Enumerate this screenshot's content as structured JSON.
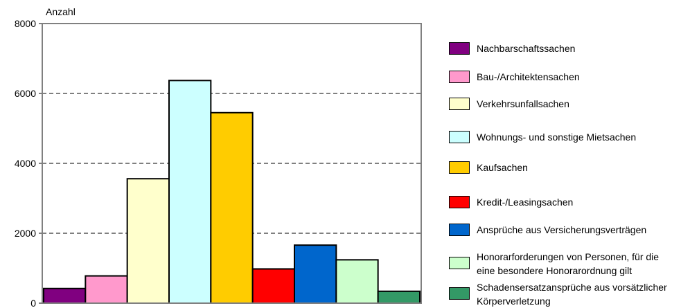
{
  "chart_data": {
    "type": "bar",
    "ylabel": "Anzahl",
    "ylim": [
      0,
      8000
    ],
    "yticks": [
      0,
      2000,
      4000,
      6000,
      8000
    ],
    "grid": "dashed horizontal",
    "legend_position": "right",
    "series": [
      {
        "name": "Nachbarschaftssachen",
        "value": 420,
        "color": "#800080"
      },
      {
        "name": "Bau-/Architektensachen",
        "value": 780,
        "color": "#ff99cc"
      },
      {
        "name": "Verkehrsunfallsachen",
        "value": 3560,
        "color": "#ffffcc"
      },
      {
        "name": "Wohnungs- und sonstige Mietsachen",
        "value": 6370,
        "color": "#ccffff"
      },
      {
        "name": "Kaufsachen",
        "value": 5450,
        "color": "#ffcc00"
      },
      {
        "name": "Kredit-/Leasingsachen",
        "value": 980,
        "color": "#ff0000"
      },
      {
        "name": "Ansprüche aus Versicherungsverträgen",
        "value": 1660,
        "color": "#0066cc"
      },
      {
        "name": "Honorarforderungen von Personen, für die\neine besondere Honorarordnung gilt",
        "value": 1240,
        "color": "#ccffcc"
      },
      {
        "name": "Schadensersatzansprüche aus vorsätzlicher\nKörperverletzung",
        "value": 340,
        "color": "#339966"
      }
    ]
  }
}
